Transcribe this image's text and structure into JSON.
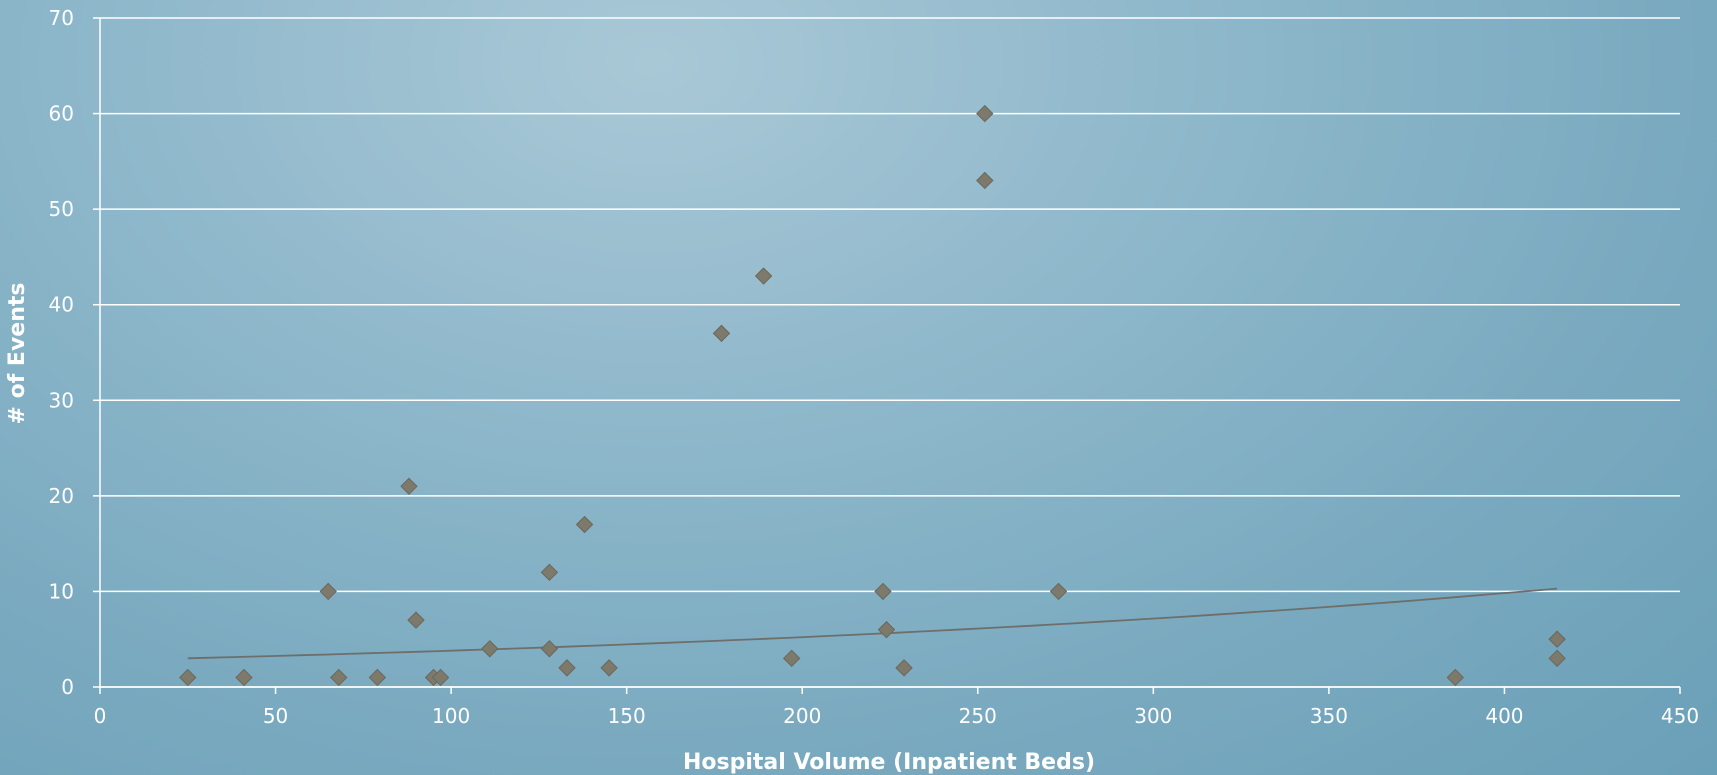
{
  "chart_data": {
    "type": "scatter",
    "title": "",
    "xlabel": "Hospital Volume (Inpatient Beds)",
    "ylabel": "# of Events",
    "xlim": [
      0,
      450
    ],
    "ylim": [
      0,
      70
    ],
    "x_ticks": [
      0,
      50,
      100,
      150,
      200,
      250,
      300,
      350,
      400,
      450
    ],
    "y_ticks": [
      0,
      10,
      20,
      30,
      40,
      50,
      60,
      70
    ],
    "grid": "horizontal",
    "legend": "none",
    "series": [
      {
        "points": [
          [
            25,
            1
          ],
          [
            41,
            1
          ],
          [
            65,
            10
          ],
          [
            68,
            1
          ],
          [
            79,
            1
          ],
          [
            88,
            21
          ],
          [
            90,
            7
          ],
          [
            95,
            1
          ],
          [
            97,
            1
          ],
          [
            111,
            4
          ],
          [
            128,
            12
          ],
          [
            128,
            4
          ],
          [
            133,
            2
          ],
          [
            138,
            17
          ],
          [
            145,
            2
          ],
          [
            177,
            37
          ],
          [
            189,
            43
          ],
          [
            197,
            3
          ],
          [
            223,
            10
          ],
          [
            224,
            6
          ],
          [
            229,
            2
          ],
          [
            252,
            60
          ],
          [
            252,
            53
          ],
          [
            273,
            10
          ],
          [
            386,
            1
          ],
          [
            415,
            5
          ],
          [
            415,
            3
          ]
        ]
      }
    ],
    "trendline": {
      "type": "exponential",
      "x_range": [
        25,
        415
      ],
      "y_start": 3.0,
      "y_end": 10.3
    },
    "colors": {
      "marker": "#7d7a6c",
      "marker_edge": "#6a675c",
      "trendline": "#6e6e6a",
      "grid": "#ffffff",
      "text": "#ffffff"
    }
  }
}
